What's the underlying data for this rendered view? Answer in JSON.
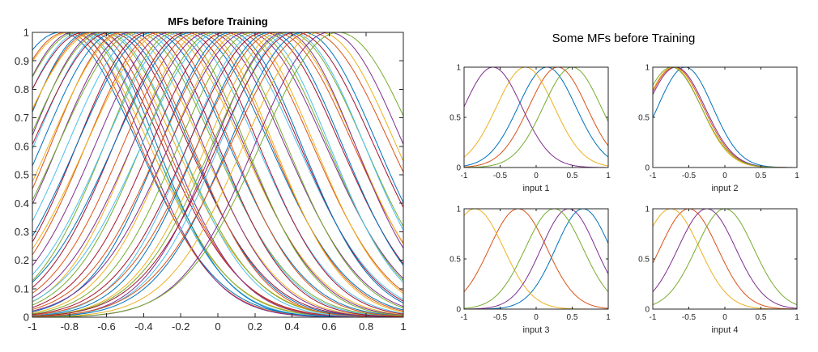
{
  "figure": {
    "suptitle": "Some MFs before Training"
  },
  "palette": [
    "#0072BD",
    "#D95319",
    "#EDB120",
    "#7E2F8E",
    "#77AC30",
    "#4DBEEE",
    "#A2142F"
  ],
  "chart_data": [
    {
      "id": "main",
      "type": "line",
      "title": "MFs before Training",
      "xlabel": "",
      "ylabel": "",
      "xlim": [
        -1,
        1
      ],
      "ylim": [
        0,
        1
      ],
      "xticks": [
        -1,
        -0.8,
        -0.6,
        -0.4,
        -0.2,
        0,
        0.2,
        0.4,
        0.6,
        0.8,
        1
      ],
      "xtick_labels": [
        "-1",
        "-0.8",
        "-0.6",
        "-0.4",
        "-0.2",
        "0",
        "0.2",
        "0.4",
        "0.6",
        "0.8",
        "1"
      ],
      "yticks": [
        0,
        0.1,
        0.2,
        0.3,
        0.4,
        0.5,
        0.6,
        0.7,
        0.8,
        0.9,
        1
      ],
      "ytick_labels": [
        "0",
        "0.1",
        "0.2",
        "0.3",
        "0.4",
        "0.5",
        "0.6",
        "0.7",
        "0.8",
        "0.9",
        "1"
      ],
      "curve_model": "gaussian",
      "series": [
        {
          "center": -0.85,
          "sigma": 0.42
        },
        {
          "center": -0.82,
          "sigma": 0.4
        },
        {
          "center": -0.8,
          "sigma": 0.43
        },
        {
          "center": -0.78,
          "sigma": 0.38
        },
        {
          "center": -0.76,
          "sigma": 0.41
        },
        {
          "center": -0.74,
          "sigma": 0.39
        },
        {
          "center": -0.72,
          "sigma": 0.42
        },
        {
          "center": -0.7,
          "sigma": 0.37
        },
        {
          "center": -0.68,
          "sigma": 0.4
        },
        {
          "center": -0.66,
          "sigma": 0.43
        },
        {
          "center": -0.64,
          "sigma": 0.38
        },
        {
          "center": -0.62,
          "sigma": 0.41
        },
        {
          "center": -0.6,
          "sigma": 0.39
        },
        {
          "center": -0.58,
          "sigma": 0.42
        },
        {
          "center": -0.55,
          "sigma": 0.4
        },
        {
          "center": -0.52,
          "sigma": 0.38
        },
        {
          "center": -0.5,
          "sigma": 0.41
        },
        {
          "center": -0.47,
          "sigma": 0.39
        },
        {
          "center": -0.44,
          "sigma": 0.42
        },
        {
          "center": -0.41,
          "sigma": 0.4
        },
        {
          "center": -0.38,
          "sigma": 0.38
        },
        {
          "center": -0.35,
          "sigma": 0.41
        },
        {
          "center": -0.32,
          "sigma": 0.39
        },
        {
          "center": -0.29,
          "sigma": 0.42
        },
        {
          "center": -0.26,
          "sigma": 0.4
        },
        {
          "center": -0.23,
          "sigma": 0.38
        },
        {
          "center": -0.2,
          "sigma": 0.41
        },
        {
          "center": -0.17,
          "sigma": 0.39
        },
        {
          "center": -0.14,
          "sigma": 0.42
        },
        {
          "center": -0.11,
          "sigma": 0.4
        },
        {
          "center": -0.08,
          "sigma": 0.38
        },
        {
          "center": -0.05,
          "sigma": 0.41
        },
        {
          "center": -0.02,
          "sigma": 0.39
        },
        {
          "center": 0.01,
          "sigma": 0.42
        },
        {
          "center": 0.04,
          "sigma": 0.4
        },
        {
          "center": 0.07,
          "sigma": 0.38
        },
        {
          "center": 0.1,
          "sigma": 0.41
        },
        {
          "center": 0.13,
          "sigma": 0.39
        },
        {
          "center": 0.16,
          "sigma": 0.42
        },
        {
          "center": 0.19,
          "sigma": 0.4
        },
        {
          "center": 0.22,
          "sigma": 0.38
        },
        {
          "center": 0.25,
          "sigma": 0.41
        },
        {
          "center": 0.28,
          "sigma": 0.39
        },
        {
          "center": 0.31,
          "sigma": 0.42
        },
        {
          "center": 0.34,
          "sigma": 0.4
        },
        {
          "center": 0.36,
          "sigma": 0.38
        },
        {
          "center": 0.38,
          "sigma": 0.41
        },
        {
          "center": 0.4,
          "sigma": 0.39
        },
        {
          "center": 0.42,
          "sigma": 0.42
        },
        {
          "center": 0.46,
          "sigma": 0.4
        },
        {
          "center": 0.5,
          "sigma": 0.43
        },
        {
          "center": 0.55,
          "sigma": 0.41
        },
        {
          "center": 0.6,
          "sigma": 0.4
        },
        {
          "center": 0.65,
          "sigma": 0.42
        }
      ]
    },
    {
      "id": "input1",
      "type": "line",
      "title": "",
      "xlabel": "input 1",
      "xlim": [
        -1,
        1
      ],
      "ylim": [
        0,
        1
      ],
      "xticks": [
        -1,
        -0.5,
        0,
        0.5,
        1
      ],
      "xtick_labels": [
        "-1",
        "-0.5",
        "0",
        "0.5",
        "1"
      ],
      "yticks": [
        0,
        0.5,
        1
      ],
      "ytick_labels": [
        "0",
        "0.5",
        "1"
      ],
      "curve_model": "gaussian",
      "series": [
        {
          "center": 0.15,
          "sigma": 0.4,
          "color": "#0072BD"
        },
        {
          "center": 0.3,
          "sigma": 0.4,
          "color": "#D95319"
        },
        {
          "center": -0.15,
          "sigma": 0.4,
          "color": "#EDB120"
        },
        {
          "center": -0.6,
          "sigma": 0.4,
          "color": "#7E2F8E"
        },
        {
          "center": 0.5,
          "sigma": 0.4,
          "color": "#77AC30"
        }
      ]
    },
    {
      "id": "input2",
      "type": "line",
      "title": "",
      "xlabel": "input 2",
      "xlim": [
        -1,
        1
      ],
      "ylim": [
        0,
        1
      ],
      "xticks": [
        -1,
        -0.5,
        0,
        0.5,
        1
      ],
      "xtick_labels": [
        "-1",
        "-0.5",
        "0",
        "0.5",
        "1"
      ],
      "yticks": [
        0,
        0.5,
        1
      ],
      "ytick_labels": [
        "0",
        "0.5",
        "1"
      ],
      "curve_model": "gaussian",
      "series": [
        {
          "center": -0.55,
          "sigma": 0.38,
          "color": "#0072BD"
        },
        {
          "center": -0.7,
          "sigma": 0.4,
          "color": "#D95319"
        },
        {
          "center": -0.72,
          "sigma": 0.39,
          "color": "#EDB120"
        },
        {
          "center": -0.68,
          "sigma": 0.4,
          "color": "#7E2F8E"
        },
        {
          "center": -0.74,
          "sigma": 0.41,
          "color": "#77AC30"
        }
      ]
    },
    {
      "id": "input3",
      "type": "line",
      "title": "",
      "xlabel": "input 3",
      "xlim": [
        -1,
        1
      ],
      "ylim": [
        0,
        1
      ],
      "xticks": [
        -1,
        -0.5,
        0,
        0.5,
        1
      ],
      "xtick_labels": [
        "-1",
        "-0.5",
        "0",
        "0.5",
        "1"
      ],
      "yticks": [
        0,
        0.5,
        1
      ],
      "ytick_labels": [
        "0",
        "0.5",
        "1"
      ],
      "curve_model": "gaussian",
      "series": [
        {
          "center": 0.65,
          "sigma": 0.38,
          "color": "#0072BD"
        },
        {
          "center": -0.25,
          "sigma": 0.4,
          "color": "#D95319"
        },
        {
          "center": -0.85,
          "sigma": 0.4,
          "color": "#EDB120"
        },
        {
          "center": 0.45,
          "sigma": 0.38,
          "color": "#7E2F8E"
        },
        {
          "center": 0.25,
          "sigma": 0.4,
          "color": "#77AC30"
        }
      ]
    },
    {
      "id": "input4",
      "type": "line",
      "title": "",
      "xlabel": "input 4",
      "xlim": [
        -1,
        1
      ],
      "ylim": [
        0,
        1
      ],
      "xticks": [
        -1,
        -0.5,
        0,
        0.5,
        1
      ],
      "xtick_labels": [
        "-1",
        "-0.5",
        "0",
        "0.5",
        "1"
      ],
      "yticks": [
        0,
        0.5,
        1
      ],
      "ytick_labels": [
        "0",
        "0.5",
        "1"
      ],
      "curve_model": "gaussian",
      "series": [
        {
          "center": -0.5,
          "sigma": 0.4,
          "color": "#D95319"
        },
        {
          "center": -0.75,
          "sigma": 0.4,
          "color": "#EDB120"
        },
        {
          "center": -0.25,
          "sigma": 0.4,
          "color": "#7E2F8E"
        },
        {
          "center": 0.0,
          "sigma": 0.4,
          "color": "#77AC30"
        }
      ]
    }
  ]
}
